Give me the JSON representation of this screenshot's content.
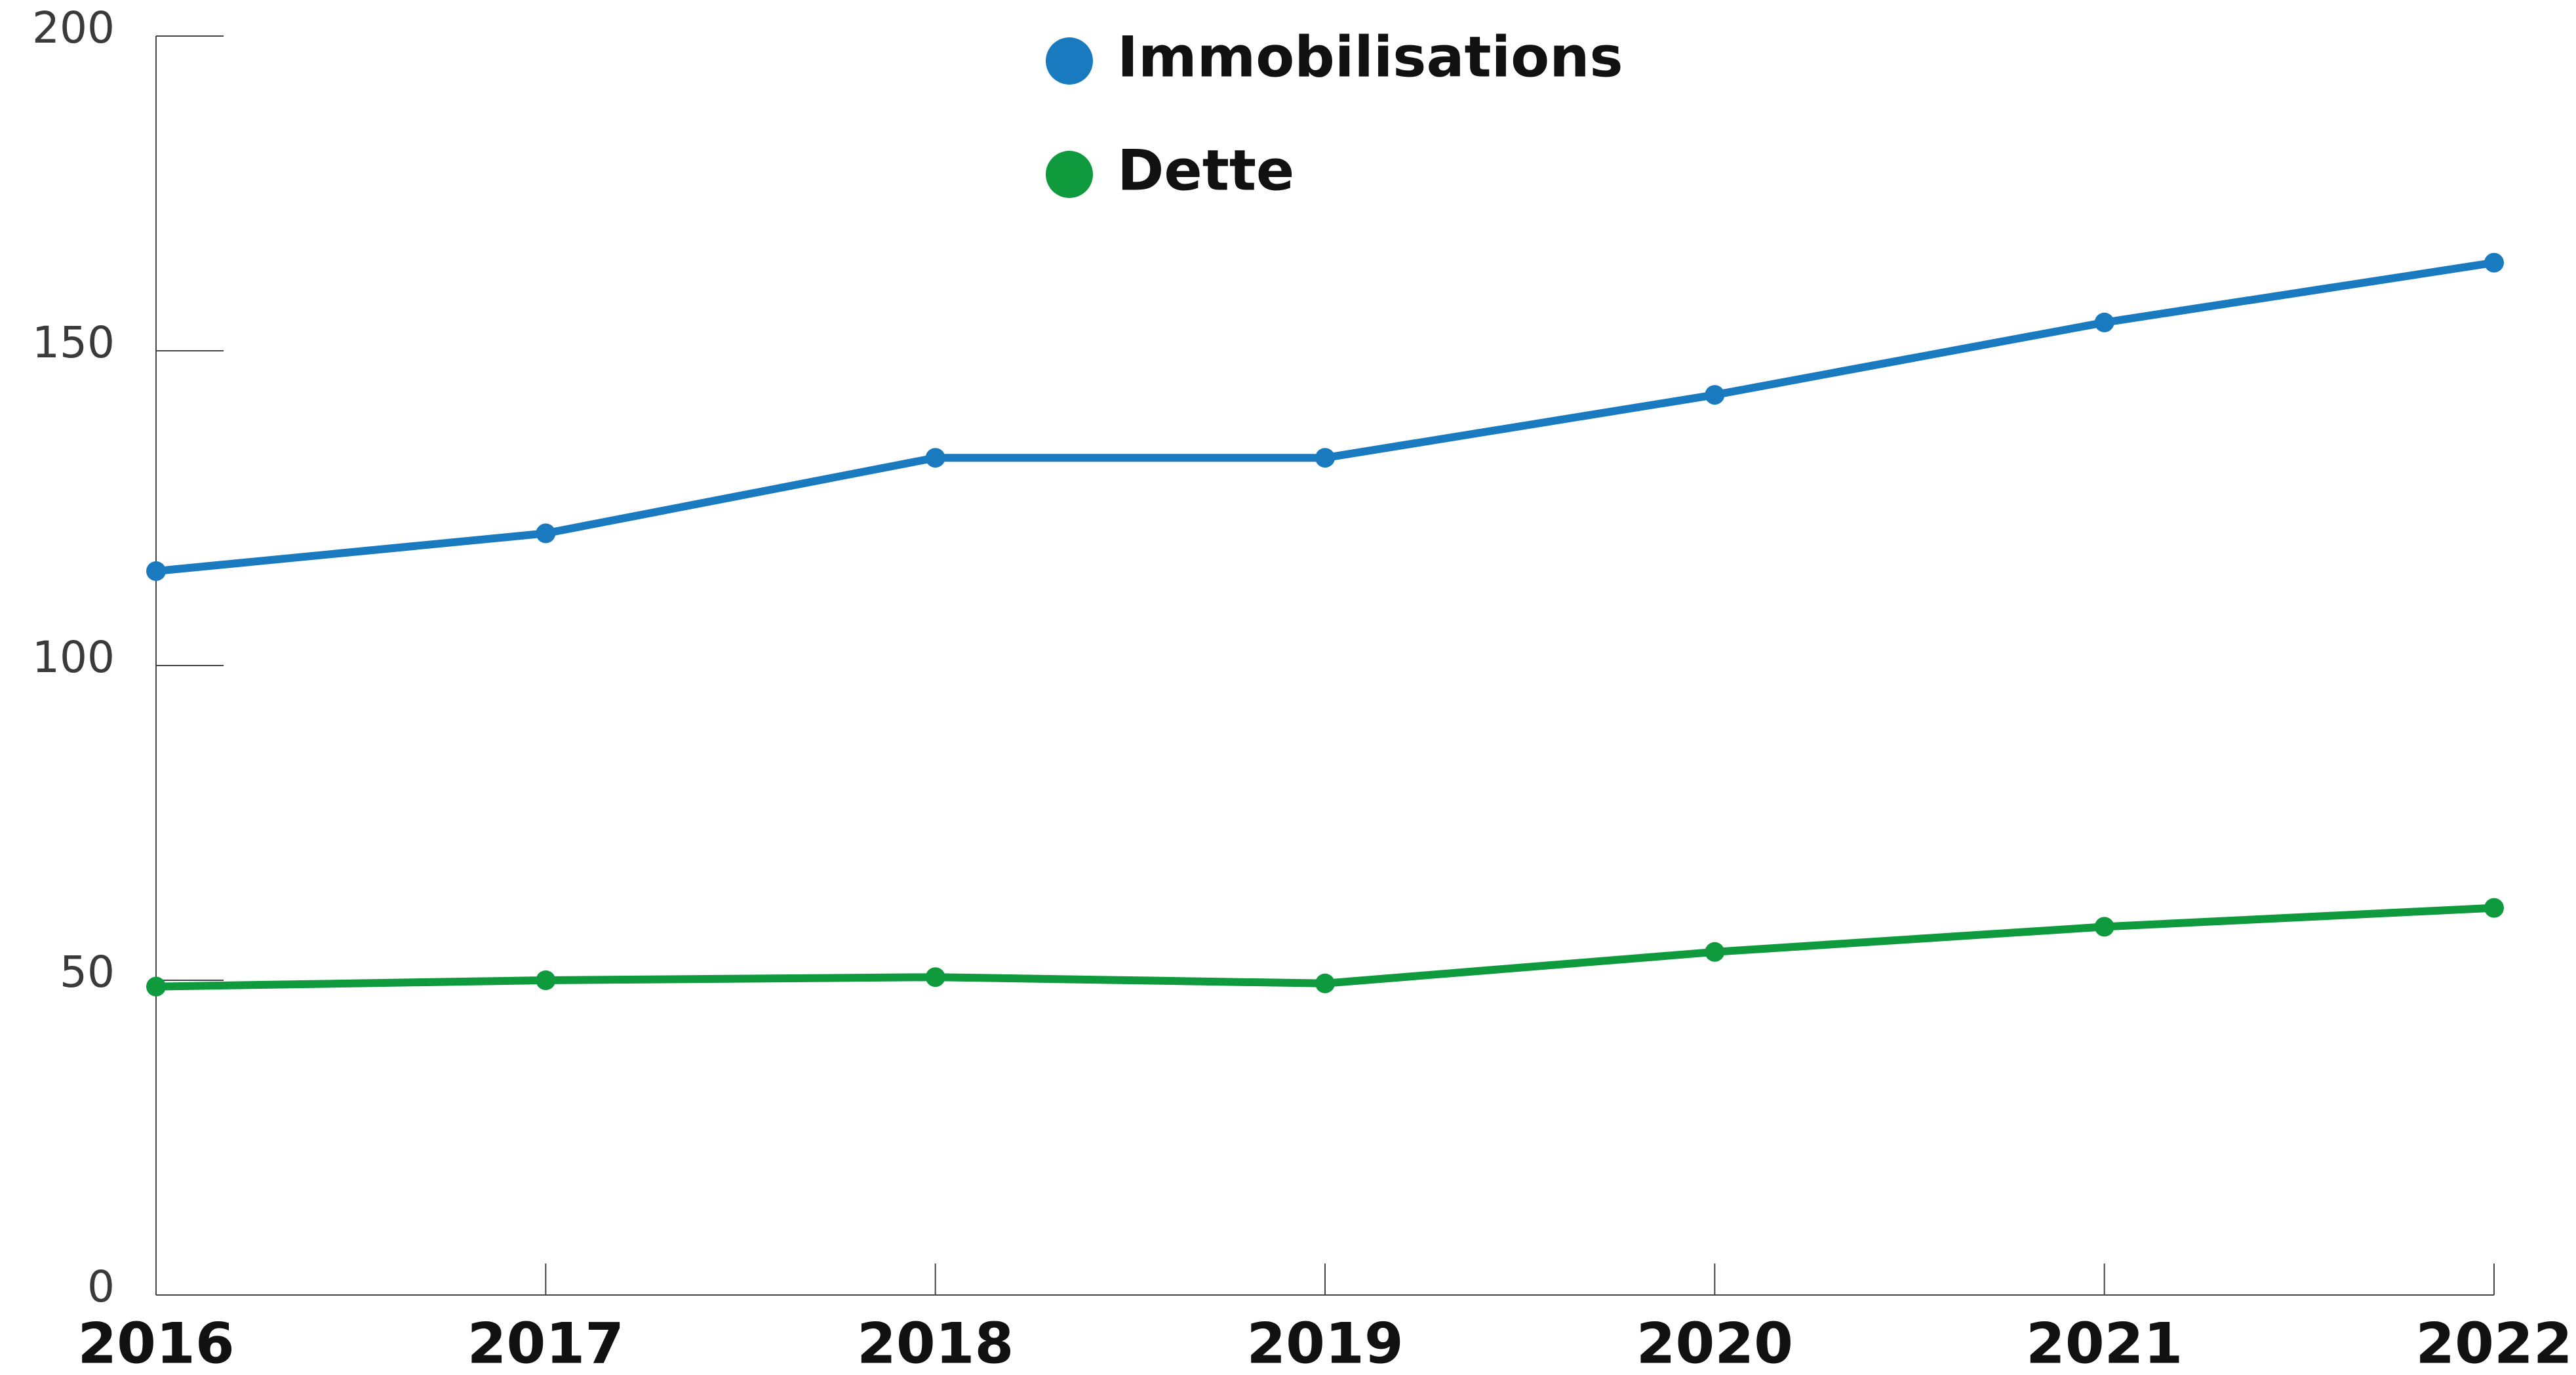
{
  "chart_data": {
    "type": "line",
    "categories": [
      "2016",
      "2017",
      "2018",
      "2019",
      "2020",
      "2021",
      "2022"
    ],
    "series": [
      {
        "name": "Immobilisations",
        "color": "#1a7abf",
        "values": [
          115,
          121,
          133,
          133,
          143,
          154.5,
          164
        ]
      },
      {
        "name": "Dette",
        "color": "#0f9a3e",
        "values": [
          49,
          50,
          50.5,
          49.5,
          54.5,
          58.5,
          61.5
        ]
      }
    ],
    "ylim": [
      0,
      200
    ],
    "yticks": [
      0,
      50,
      100,
      150,
      200
    ],
    "legend": "top"
  }
}
